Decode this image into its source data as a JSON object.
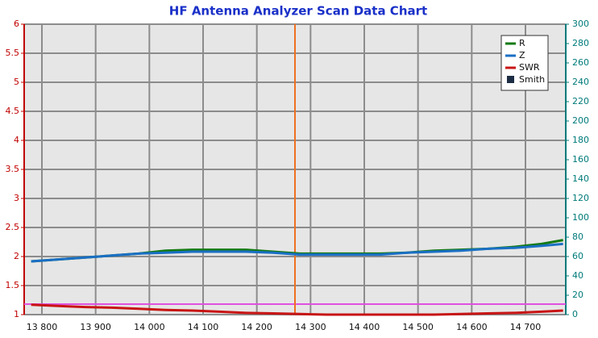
{
  "chart_data": {
    "type": "line",
    "title": "HF Antenna Analyzer Scan Data Chart",
    "x": [
      13780,
      13830,
      13880,
      13930,
      13980,
      14030,
      14080,
      14130,
      14180,
      14230,
      14280,
      14330,
      14380,
      14430,
      14480,
      14530,
      14580,
      14630,
      14680,
      14730,
      14770
    ],
    "series": [
      {
        "name": "R",
        "color": "#127a12",
        "axis": "y2",
        "values": [
          55,
          57,
          59,
          61,
          63,
          66,
          67,
          67,
          67,
          65,
          63,
          63,
          63,
          63,
          64,
          66,
          67,
          68,
          70,
          73,
          77
        ]
      },
      {
        "name": "Z",
        "color": "#1a6fc4",
        "axis": "y2",
        "values": [
          55,
          57,
          59,
          61,
          63,
          64,
          65,
          65,
          65,
          64,
          62,
          62,
          62,
          62,
          64,
          65,
          66,
          68,
          69,
          71,
          73
        ]
      },
      {
        "name": "SWR",
        "color": "#c81414",
        "values": [
          1.17,
          1.15,
          1.13,
          1.12,
          1.1,
          1.08,
          1.07,
          1.05,
          1.03,
          1.02,
          1.01,
          1.0,
          1.0,
          1.0,
          1.0,
          1.0,
          1.01,
          1.02,
          1.03,
          1.05,
          1.07
        ]
      }
    ],
    "legend_extra": [
      {
        "name": "Smith",
        "color": "#1c2c44"
      }
    ],
    "reference_line": {
      "value": 1.18,
      "color": "#e050e0"
    },
    "marker_x": {
      "value": 14271,
      "color": "#f07020"
    },
    "xlim": [
      13767,
      14775
    ],
    "xticks": [
      {
        "value": 13800,
        "label": "13 800"
      },
      {
        "value": 13900,
        "label": "13 900"
      },
      {
        "value": 14000,
        "label": "14 000"
      },
      {
        "value": 14100,
        "label": "14 100"
      },
      {
        "value": 14200,
        "label": "14 200"
      },
      {
        "value": 14300,
        "label": "14 300"
      },
      {
        "value": 14400,
        "label": "14 400"
      },
      {
        "value": 14500,
        "label": "14 500"
      },
      {
        "value": 14600,
        "label": "14 600"
      },
      {
        "value": 14700,
        "label": "14 700"
      }
    ],
    "ylim": [
      1,
      6
    ],
    "yticks": [
      1,
      1.5,
      2,
      2.5,
      3,
      3.5,
      4,
      4.5,
      5,
      5.5,
      6
    ],
    "ycolor": "#c00000",
    "y2lim": [
      0,
      300
    ],
    "y2ticks": [
      0,
      20,
      40,
      60,
      80,
      100,
      120,
      140,
      160,
      180,
      200,
      220,
      240,
      260,
      280,
      300
    ],
    "y2color": "#007a7a",
    "grid": true,
    "legend": "upper-right"
  }
}
